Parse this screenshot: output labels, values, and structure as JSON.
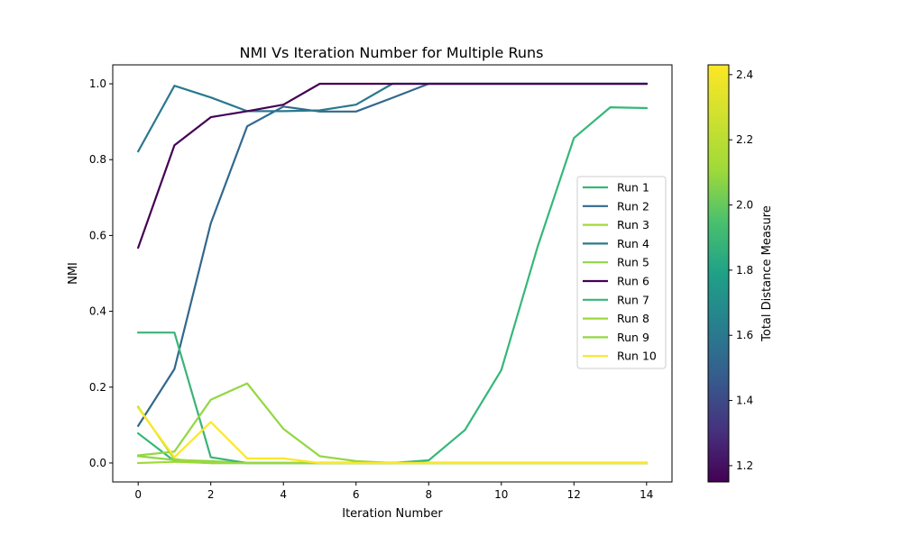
{
  "chart_data": {
    "type": "line",
    "title": "NMI Vs Iteration Number for Multiple Runs",
    "xlabel": "Iteration Number",
    "ylabel": "NMI",
    "xlim": [
      -0.7,
      14.7
    ],
    "ylim": [
      -0.05,
      1.05
    ],
    "x_ticks": [
      0,
      2,
      4,
      6,
      8,
      10,
      12,
      14
    ],
    "y_ticks": [
      0.0,
      0.2,
      0.4,
      0.6,
      0.8,
      1.0
    ],
    "x_tick_labels": [
      "0",
      "2",
      "4",
      "6",
      "8",
      "10",
      "12",
      "14"
    ],
    "y_tick_labels": [
      "0.0",
      "0.2",
      "0.4",
      "0.6",
      "0.8",
      "1.0"
    ],
    "x": [
      0,
      1,
      2,
      3,
      4,
      5,
      6,
      7,
      8,
      9,
      10,
      11,
      12,
      13,
      14
    ],
    "series": [
      {
        "name": "Run 1",
        "color": "#35b779",
        "values": [
          0.078,
          0.005,
          0.0,
          0.0,
          0.0,
          0.0,
          0.0,
          0.0,
          0.007,
          0.087,
          0.245,
          0.57,
          0.857,
          0.938,
          0.936
        ]
      },
      {
        "name": "Run 2",
        "color": "#31688e",
        "values": [
          0.098,
          0.248,
          0.632,
          0.888,
          0.94,
          0.927,
          0.927,
          0.963,
          1.0,
          1.0,
          1.0,
          1.0,
          1.0,
          1.0,
          1.0
        ]
      },
      {
        "name": "Run 3",
        "color": "#a0da39",
        "values": [
          0.0,
          0.003,
          0.0,
          0.0,
          0.0,
          0.0,
          0.0,
          0.0,
          0.0,
          0.0,
          0.0,
          0.0,
          0.0,
          0.0,
          0.0
        ]
      },
      {
        "name": "Run 4",
        "color": "#2a788e",
        "values": [
          0.822,
          0.995,
          0.964,
          0.928,
          0.928,
          0.93,
          0.945,
          1.0,
          1.0,
          1.0,
          1.0,
          1.0,
          1.0,
          1.0,
          1.0
        ]
      },
      {
        "name": "Run 5",
        "color": "#8fd744",
        "values": [
          0.018,
          0.008,
          0.005,
          0.0,
          0.0,
          0.0,
          0.0,
          0.0,
          0.0,
          0.0,
          0.0,
          0.0,
          0.0,
          0.0,
          0.0
        ]
      },
      {
        "name": "Run 6",
        "color": "#440154",
        "values": [
          0.568,
          0.838,
          0.912,
          0.928,
          0.945,
          1.0,
          1.0,
          1.0,
          1.0,
          1.0,
          1.0,
          1.0,
          1.0,
          1.0,
          1.0
        ]
      },
      {
        "name": "Run 7",
        "color": "#3bb377",
        "values": [
          0.344,
          0.344,
          0.015,
          0.0,
          0.0,
          0.0,
          0.0,
          0.0,
          0.0,
          0.0,
          0.0,
          0.0,
          0.0,
          0.0,
          0.0
        ]
      },
      {
        "name": "Run 8",
        "color": "#9ad93c",
        "values": [
          0.148,
          0.01,
          0.0,
          0.0,
          0.0,
          0.0,
          0.0,
          0.0,
          0.0,
          0.0,
          0.0,
          0.0,
          0.0,
          0.0,
          0.0
        ]
      },
      {
        "name": "Run 9",
        "color": "#93d741",
        "values": [
          0.02,
          0.03,
          0.167,
          0.21,
          0.09,
          0.018,
          0.005,
          0.0,
          0.0,
          0.0,
          0.0,
          0.0,
          0.0,
          0.0,
          0.0
        ]
      },
      {
        "name": "Run 10",
        "color": "#fde725",
        "values": [
          0.145,
          0.015,
          0.108,
          0.012,
          0.012,
          0.0,
          0.0,
          0.0,
          0.0,
          0.0,
          0.0,
          0.0,
          0.0,
          0.0,
          0.0
        ]
      }
    ],
    "legend_position": "center-right",
    "grid": false,
    "colorbar": {
      "label": "Total Distance Measure",
      "colormap": "viridis",
      "range": [
        1.15,
        2.43
      ],
      "ticks": [
        1.2,
        1.4,
        1.6,
        1.8,
        2.0,
        2.2,
        2.4
      ],
      "tick_labels": [
        "1.2",
        "1.4",
        "1.6",
        "1.8",
        "2.0",
        "2.2",
        "2.4"
      ]
    }
  }
}
